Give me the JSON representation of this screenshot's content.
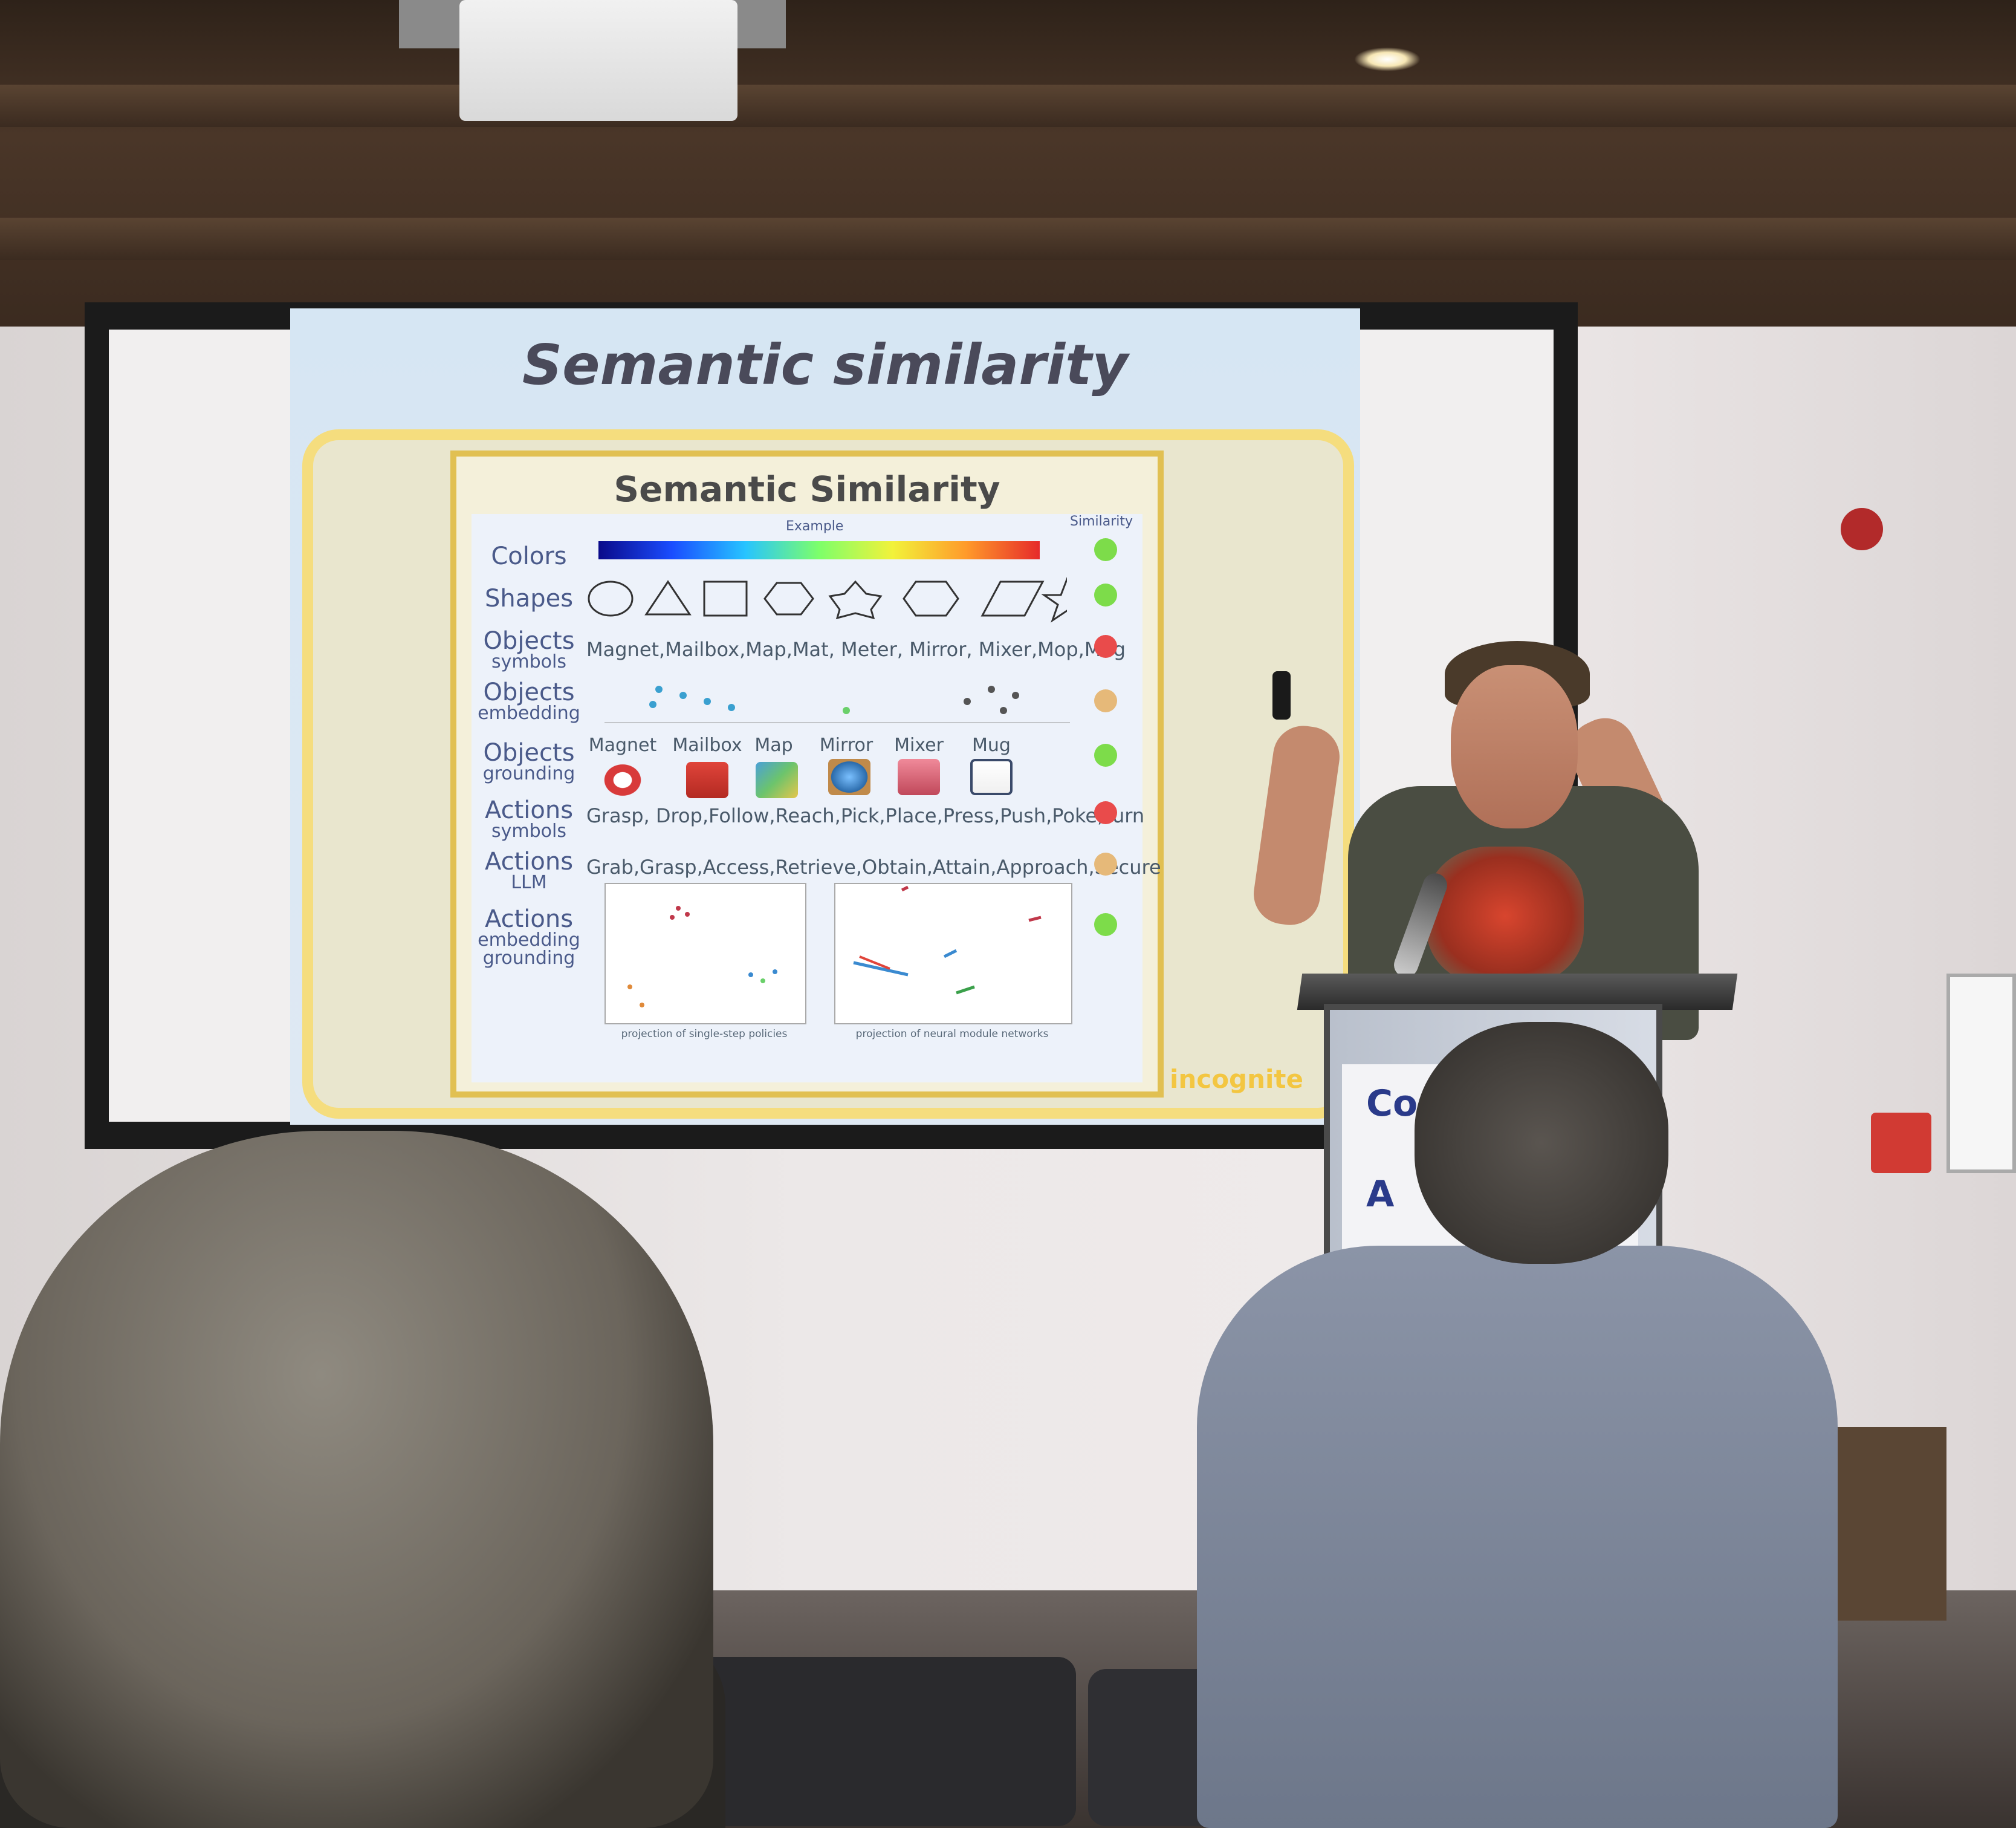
{
  "slide": {
    "title": "Semantic similarity",
    "panel_title": "Semantic Similarity",
    "header_example": "Example",
    "header_similarity": "Similarity",
    "rows": [
      {
        "label_big": "Colors",
        "label_small": "",
        "example": "",
        "similarity_color": "#7ddc4a"
      },
      {
        "label_big": "Shapes",
        "label_small": "",
        "example": "",
        "similarity_color": "#7ddc4a"
      },
      {
        "label_big": "Objects",
        "label_small": "symbols",
        "example": "Magnet,Mailbox,Map,Mat, Meter, Mirror, Mixer,Mop,Mug",
        "similarity_color": "#e94b4b"
      },
      {
        "label_big": "Objects",
        "label_small": "embedding",
        "example": "",
        "similarity_color": "#e6b979"
      },
      {
        "label_big": "Objects",
        "label_small": "grounding",
        "example": "",
        "similarity_color": "#7ddc4a"
      },
      {
        "label_big": "Actions",
        "label_small": "symbols",
        "example": "Grasp, Drop,Follow,Reach,Pick,Place,Press,Push,Poke,Turn",
        "similarity_color": "#e94b4b"
      },
      {
        "label_big": "Actions",
        "label_small": "LLM",
        "example": "Grab,Grasp,Access,Retrieve,Obtain,Attain,Approach,Secure",
        "similarity_color": "#e6b979"
      },
      {
        "label_big": "Actions",
        "label_small": "embedding grounding",
        "example": "",
        "similarity_color": "#7ddc4a"
      }
    ],
    "objects": [
      {
        "name": "Magnet",
        "icon": "magnet-icon"
      },
      {
        "name": "Mailbox",
        "icon": "mailbox-icon"
      },
      {
        "name": "Map",
        "icon": "map-icon"
      },
      {
        "name": "Mirror",
        "icon": "mirror-icon"
      },
      {
        "name": "Mixer",
        "icon": "mixer-icon"
      },
      {
        "name": "Mug",
        "icon": "mug-icon"
      }
    ],
    "plot_captions": [
      "projection of single-step policies",
      "projection of neural module networks"
    ],
    "logo": "incognite"
  },
  "lectern_sign": {
    "line1": "Co",
    "line2": "A"
  },
  "colors": {
    "slide_bg": "#d6e6f3",
    "panel_border": "#f5dd7e",
    "text_blue": "#4a5a8a"
  }
}
